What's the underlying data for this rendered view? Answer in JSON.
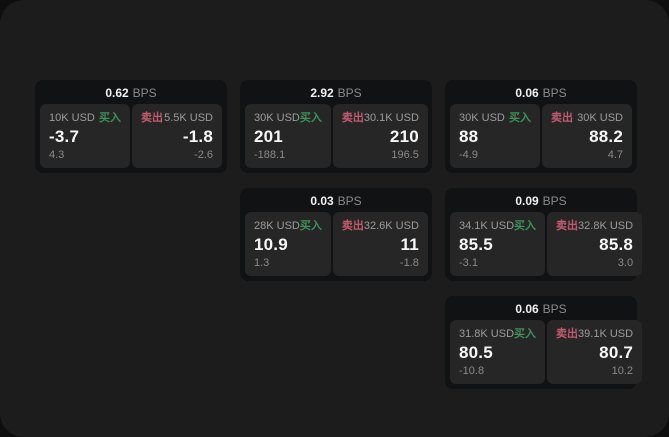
{
  "colors": {
    "buy-green": "#3d9156",
    "sell-red": "#c25b6e"
  },
  "shared": {
    "bps_unit": "BPS",
    "buy_label": "买入",
    "sell_label": "卖出"
  },
  "cards": [
    {
      "bps": "0.62",
      "buy": {
        "amount": "10K USD",
        "price": "-3.7",
        "delta": "4.3"
      },
      "sell": {
        "amount": "5.5K USD",
        "price": "-1.8",
        "delta": "-2.6"
      }
    },
    {
      "bps": "2.92",
      "buy": {
        "amount": "30K USD",
        "price": "201",
        "delta": "-188.1"
      },
      "sell": {
        "amount": "30.1K USD",
        "price": "210",
        "delta": "196.5"
      }
    },
    {
      "bps": "0.06",
      "buy": {
        "amount": "30K USD",
        "price": "88",
        "delta": "-4.9"
      },
      "sell": {
        "amount": "30K USD",
        "price": "88.2",
        "delta": "4.7"
      }
    },
    {
      "bps": "0.03",
      "buy": {
        "amount": "28K USD",
        "price": "10.9",
        "delta": "1.3"
      },
      "sell": {
        "amount": "32.6K USD",
        "price": "11",
        "delta": "-1.8"
      }
    },
    {
      "bps": "0.09",
      "buy": {
        "amount": "34.1K USD",
        "price": "85.5",
        "delta": "-3.1"
      },
      "sell": {
        "amount": "32.8K USD",
        "price": "85.8",
        "delta": "3.0"
      }
    },
    {
      "bps": "0.06",
      "buy": {
        "amount": "31.8K USD",
        "price": "80.5",
        "delta": "-10.8"
      },
      "sell": {
        "amount": "39.1K USD",
        "price": "80.7",
        "delta": "10.2"
      }
    }
  ]
}
